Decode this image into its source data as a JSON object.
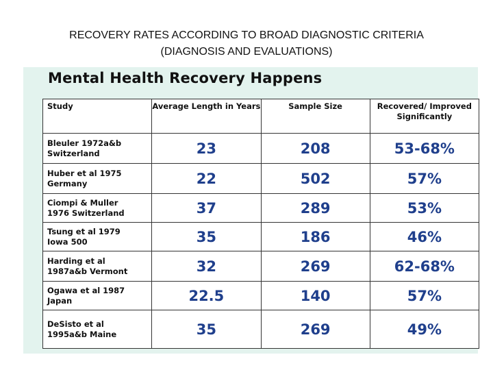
{
  "slide_title_line1": "RECOVERY RATES ACCORDING TO BROAD DIAGNOSTIC CRITERIA",
  "slide_title_line2": "(DIAGNOSIS AND EVALUATIONS)",
  "panel_heading": "Mental Health Recovery Happens",
  "table": {
    "headers": [
      "Study",
      "Average Length in Years",
      "Sample Size",
      "Recovered/ Improved Significantly"
    ],
    "rows": [
      {
        "study": "Bleuler 1972a&b\nSwitzerland",
        "years": "23",
        "sample": "208",
        "recovered": "53-68%"
      },
      {
        "study": "Huber et al 1975\nGermany",
        "years": "22",
        "sample": "502",
        "recovered": "57%"
      },
      {
        "study": "Ciompi & Muller\n1976 Switzerland",
        "years": "37",
        "sample": "289",
        "recovered": "53%"
      },
      {
        "study": "Tsung et al 1979\nIowa 500",
        "years": "35",
        "sample": "186",
        "recovered": "46%"
      },
      {
        "study": "Harding et al\n1987a&b Vermont",
        "years": "32",
        "sample": "269",
        "recovered": "62-68%"
      },
      {
        "study": "Ogawa et al 1987\nJapan",
        "years": "22.5",
        "sample": "140",
        "recovered": "57%"
      },
      {
        "study": "DeSisto et al\n1995a&b Maine",
        "years": "35",
        "sample": "269",
        "recovered": "49%"
      }
    ]
  }
}
